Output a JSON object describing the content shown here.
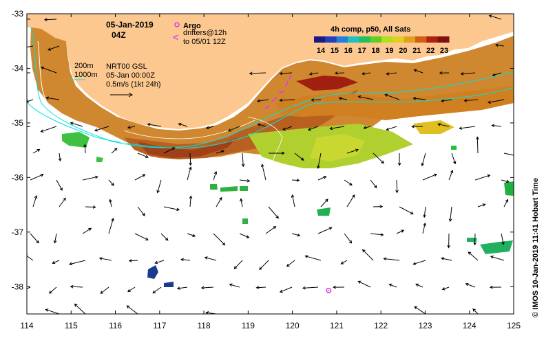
{
  "title": {
    "date": "05-Jan-2019",
    "time": "04Z"
  },
  "legend": {
    "argo_label": "Argo",
    "drifter_line1": "drifters@12h",
    "drifter_line2": "to 05/01 12Z",
    "contour_200": "200m",
    "contour_1000": "1000m",
    "current_line1": "NRT00 GSL",
    "current_line2": "05-Jan 00:00Z",
    "current_scale": "0.5m/s (1kt 24h)",
    "argo_color": "#e040e0",
    "drifter_color": "#e040e0",
    "contour_color": "#00e0e0"
  },
  "colorbar": {
    "title": "4h comp, p50, All Sats",
    "ticks": [
      "14",
      "15",
      "16",
      "17",
      "18",
      "19",
      "20",
      "21",
      "22",
      "23"
    ],
    "colors": [
      "#1a1a80",
      "#2040c0",
      "#2080e0",
      "#20c0c0",
      "#20c060",
      "#60d020",
      "#b0e020",
      "#e0d020",
      "#e0a020",
      "#d06010",
      "#b02010",
      "#801010"
    ]
  },
  "axes": {
    "lon_ticks": [
      "114",
      "115",
      "116",
      "117",
      "118",
      "119",
      "120",
      "121",
      "122",
      "123",
      "124",
      "125"
    ],
    "lat_ticks": [
      "-33",
      "-34",
      "-35",
      "-36",
      "-37",
      "-38"
    ],
    "lon_range": [
      114,
      125
    ],
    "lat_range": [
      -38.5,
      -33
    ]
  },
  "land_color": "#fcc890",
  "credit": "© IMOS 10-Jan-2019 11:41 Hobart Time",
  "argo_position": {
    "lon": 120.82,
    "lat": -38.07
  }
}
